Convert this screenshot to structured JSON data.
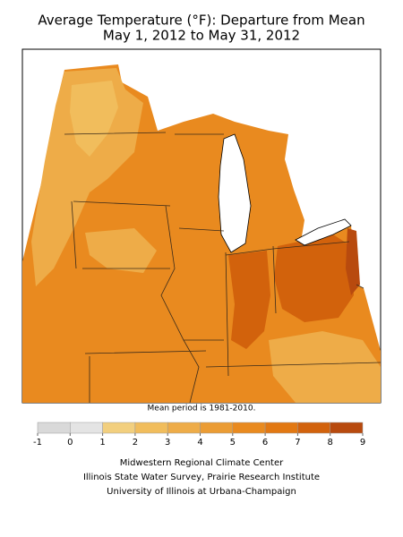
{
  "header": {
    "title_lines": [
      "Average Temperature (°F): Departure from Mean",
      "May 1, 2012 to May 31, 2012"
    ]
  },
  "note": "Mean period is 1981-2010.",
  "legend": {
    "ticks": [
      -1,
      0,
      1,
      2,
      3,
      4,
      5,
      6,
      7,
      8,
      9
    ],
    "colors": [
      "#d9d9d9",
      "#e4e4e4",
      "#f2cf7e",
      "#f1bd5c",
      "#eeac48",
      "#eb9c34",
      "#e98a1f",
      "#e27812",
      "#d2620c",
      "#b84a0e"
    ]
  },
  "credits": [
    "Midwestern Regional Climate Center",
    "Illinois State Water Survey, Prairie Research Institute",
    "University of Illinois at Urbana-Champaign"
  ]
}
